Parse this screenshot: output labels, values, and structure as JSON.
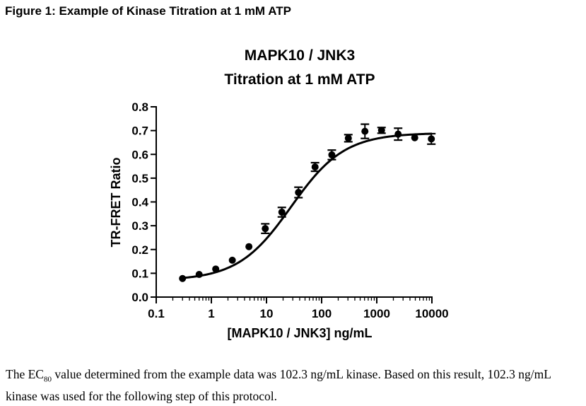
{
  "figure_caption": "Figure 1: Example of Kinase Titration at 1 mM ATP",
  "chart_data": {
    "type": "scatter",
    "title_lines": [
      "MAPK10 / JNK3",
      "Titration at 1 mM ATP"
    ],
    "xlabel": "[MAPK10 / JNK3] ng/mL",
    "ylabel": "TR-FRET Ratio",
    "x_scale": "log",
    "xlim": [
      0.1,
      10000
    ],
    "ylim": [
      0.0,
      0.8
    ],
    "x_ticks": [
      0.1,
      1,
      10,
      100,
      1000,
      10000
    ],
    "x_tick_labels": [
      "0.1",
      "1",
      "10",
      "100",
      "1000",
      "10000"
    ],
    "y_ticks": [
      0.0,
      0.1,
      0.2,
      0.3,
      0.4,
      0.5,
      0.6,
      0.7,
      0.8
    ],
    "y_tick_labels": [
      "0.0",
      "0.1",
      "0.2",
      "0.3",
      "0.4",
      "0.5",
      "0.6",
      "0.7",
      "0.8"
    ],
    "grid": false,
    "series": [
      {
        "x": [
          0.3,
          0.6,
          1.2,
          2.4,
          4.8,
          9.5,
          19,
          38,
          76,
          153,
          305,
          610,
          1220,
          2440,
          4880,
          9770
        ],
        "y": [
          0.078,
          0.095,
          0.118,
          0.155,
          0.212,
          0.288,
          0.357,
          0.44,
          0.547,
          0.598,
          0.668,
          0.697,
          0.701,
          0.685,
          0.67,
          0.665
        ],
        "yerr": [
          0.0,
          0.0,
          0.0,
          0.0,
          0.0,
          0.02,
          0.02,
          0.022,
          0.018,
          0.02,
          0.015,
          0.03,
          0.012,
          0.025,
          0.0,
          0.022
        ]
      }
    ],
    "fit_curve": {
      "model": "sigmoidal dose-response (log x)",
      "bottom": 0.07,
      "top": 0.69,
      "ec50": 28,
      "hill": 0.9
    }
  },
  "body_text": {
    "part1": "The EC",
    "subscript": "80",
    "part2": " value determined from the example data was 102.3 ng/mL kinase.  Based on this result, 102.3 ng/mL kinase was used for the following step of this protocol."
  }
}
